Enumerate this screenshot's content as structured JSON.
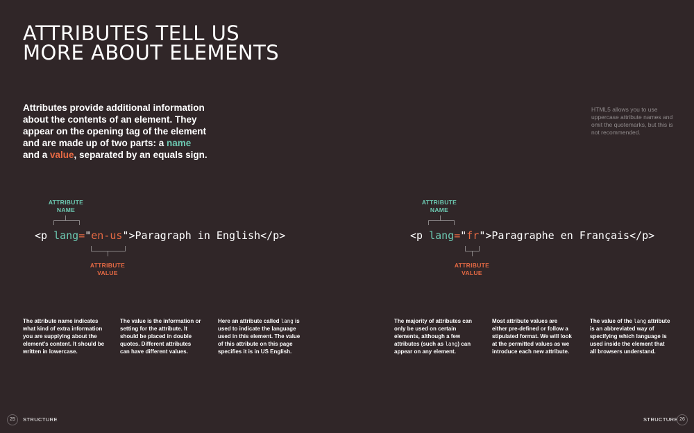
{
  "title": {
    "line1": "ATTRIBUTES TELL US",
    "line2": "MORE ABOUT ELEMENTS"
  },
  "intro": {
    "before": "Attributes provide additional information about the contents of an element. They appear on the opening tag of the element and are made up of two parts: a ",
    "name_word": "name",
    "middle": " and a ",
    "value_word": "value",
    "after": ", separated by an equals sign."
  },
  "note": "HTML5 allows you to use uppercase attribute names and omit the quotemarks, but this is not recommended.",
  "diagram1": {
    "name_label_1": "ATTRIBUTE",
    "name_label_2": "NAME",
    "value_label_1": "ATTRIBUTE",
    "value_label_2": "VALUE",
    "code_open": "<p ",
    "code_attr": "lang",
    "code_eq": "=",
    "code_q1": "\"",
    "code_val": "en-us",
    "code_q2": "\"",
    "code_rest": ">Paragraph in English</p>"
  },
  "diagram2": {
    "name_label_1": "ATTRIBUTE",
    "name_label_2": "NAME",
    "value_label_1": "ATTRIBUTE",
    "value_label_2": "VALUE",
    "code_open": "<p ",
    "code_attr": "lang",
    "code_eq": "=",
    "code_q1": "\"",
    "code_val": "fr",
    "code_q2": "\"",
    "code_rest": ">Paragraphe en Français</p>"
  },
  "columns": {
    "c1_a": "The attribute ",
    "c1_b": "name",
    "c1_c": " indicates what kind of extra information you are supplying about the element's content. It should be written in lowercase.",
    "c2_a": "The ",
    "c2_b": "value",
    "c2_c": " is the information or setting for the attribute. It should be placed in double quotes. Different attributes can have different values.",
    "c3_a": "Here an attribute called ",
    "c3_b": "lang",
    "c3_c": " is used to indicate the language used in this element. The value of this attribute on this page specifies it is in US English.",
    "c4_a": "The majority of attributes can only be used on certain elements, although a few attributes (such as ",
    "c4_b": "lang",
    "c4_c": ") can appear on any element.",
    "c5": "Most attribute values are either pre-defined or follow a stipulated format. We will look at the permitted values as we introduce each new attribute.",
    "c6_a": "The value of the ",
    "c6_b": "lang",
    "c6_c": " attribute is an abbreviated way of specifying which language is used inside the element that all browsers understand."
  },
  "footer": {
    "left_page": "25",
    "left_label": "STRUCTURE",
    "right_label": "STRUCTURE",
    "right_page": "26"
  },
  "colors": {
    "background": "#302628",
    "name": "#6dc9b2",
    "value": "#e76a44"
  }
}
